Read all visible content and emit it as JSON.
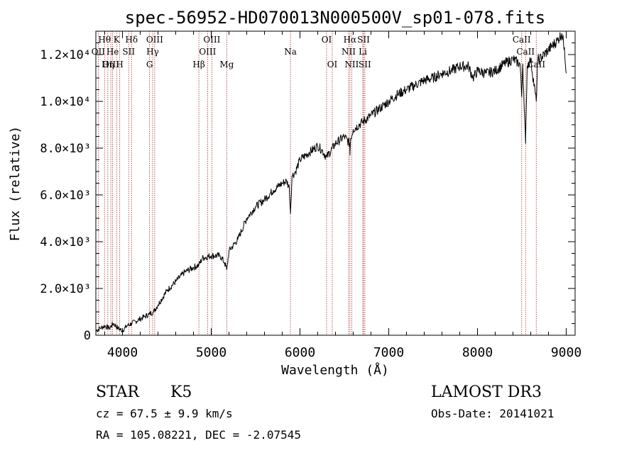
{
  "chart_data": {
    "type": "line",
    "title": "spec-56952-HD070013N000500V_sp01-078.fits",
    "xlabel": "Wavelength (Å)",
    "ylabel": "Flux (relative)",
    "xlim": [
      3700,
      9100
    ],
    "ylim": [
      0,
      13000
    ],
    "x_ticks": [
      {
        "value": 4000,
        "label": "4000"
      },
      {
        "value": 5000,
        "label": "5000"
      },
      {
        "value": 6000,
        "label": "6000"
      },
      {
        "value": 7000,
        "label": "7000"
      },
      {
        "value": 8000,
        "label": "8000"
      },
      {
        "value": 9000,
        "label": "9000"
      }
    ],
    "y_ticks": [
      {
        "value": 0,
        "label": "0"
      },
      {
        "value": 2000,
        "label": "2.0×10³"
      },
      {
        "value": 4000,
        "label": "4.0×10³"
      },
      {
        "value": 6000,
        "label": "6.0×10³"
      },
      {
        "value": 8000,
        "label": "8.0×10³"
      },
      {
        "value": 10000,
        "label": "1.0×10⁴"
      },
      {
        "value": 12000,
        "label": "1.2×10⁴"
      }
    ],
    "spectral_lines": [
      {
        "label": "Hθ",
        "wavelength": 3798,
        "row": 0
      },
      {
        "label": "OII",
        "wavelength": 3727,
        "row": 1
      },
      {
        "label": "OIII",
        "wavelength": 3869,
        "row": 2
      },
      {
        "label": "K",
        "wavelength": 3934,
        "row": 0
      },
      {
        "label": "He",
        "wavelength": 3889,
        "row": 1
      },
      {
        "label": "Hη",
        "wavelength": 3835,
        "row": 2
      },
      {
        "label": "SII",
        "wavelength": 4070,
        "row": 1
      },
      {
        "label": "H",
        "wavelength": 3969,
        "row": 2
      },
      {
        "label": "Hδ",
        "wavelength": 4102,
        "row": 0
      },
      {
        "label": "OIII",
        "wavelength": 4363,
        "row": 0
      },
      {
        "label": "Hγ",
        "wavelength": 4340,
        "row": 1
      },
      {
        "label": "G",
        "wavelength": 4305,
        "row": 2
      },
      {
        "label": "Hβ",
        "wavelength": 4861,
        "row": 2
      },
      {
        "label": "OIII",
        "wavelength": 5007,
        "row": 0
      },
      {
        "label": "OIII",
        "wavelength": 4959,
        "row": 1
      },
      {
        "label": "Mg",
        "wavelength": 5175,
        "row": 2
      },
      {
        "label": "Na",
        "wavelength": 5893,
        "row": 1
      },
      {
        "label": "OI",
        "wavelength": 6300,
        "row": 0
      },
      {
        "label": "OI",
        "wavelength": 6364,
        "row": 2
      },
      {
        "label": "Hα",
        "wavelength": 6563,
        "row": 0
      },
      {
        "label": "NII",
        "wavelength": 6548,
        "row": 1
      },
      {
        "label": "NII",
        "wavelength": 6583,
        "row": 2
      },
      {
        "label": "SII",
        "wavelength": 6716,
        "row": 0
      },
      {
        "label": "Li",
        "wavelength": 6708,
        "row": 1
      },
      {
        "label": "SII",
        "wavelength": 6731,
        "row": 2
      },
      {
        "label": "CaII",
        "wavelength": 8498,
        "row": 0
      },
      {
        "label": "CaII",
        "wavelength": 8542,
        "row": 1
      },
      {
        "label": "CaII",
        "wavelength": 8662,
        "row": 2
      }
    ],
    "series": [
      {
        "name": "spectrum",
        "x": [
          3700,
          3750,
          3800,
          3850,
          3900,
          3950,
          4000,
          4050,
          4100,
          4150,
          4200,
          4250,
          4300,
          4350,
          4400,
          4500,
          4600,
          4700,
          4800,
          4861,
          4900,
          5000,
          5100,
          5150,
          5175,
          5200,
          5300,
          5400,
          5500,
          5600,
          5700,
          5800,
          5850,
          5880,
          5893,
          5910,
          5950,
          6000,
          6100,
          6200,
          6250,
          6300,
          6400,
          6500,
          6560,
          6563,
          6570,
          6600,
          6700,
          6800,
          6900,
          7000,
          7100,
          7200,
          7300,
          7400,
          7500,
          7600,
          7700,
          7800,
          7900,
          7950,
          8000,
          8100,
          8200,
          8300,
          8400,
          8480,
          8498,
          8510,
          8542,
          8560,
          8600,
          8662,
          8680,
          8700,
          8800,
          8900,
          8950,
          8980,
          9000
        ],
        "y": [
          200,
          300,
          400,
          300,
          500,
          300,
          200,
          400,
          500,
          600,
          700,
          800,
          900,
          1000,
          1300,
          1900,
          2300,
          2700,
          2900,
          3000,
          3300,
          3400,
          3400,
          3100,
          2800,
          3600,
          4100,
          5000,
          5500,
          5800,
          6200,
          6500,
          6600,
          6300,
          5200,
          6800,
          7000,
          7500,
          7800,
          8100,
          7900,
          7600,
          8200,
          8500,
          8200,
          7700,
          8400,
          8800,
          9100,
          9400,
          9700,
          10000,
          10300,
          10500,
          10700,
          10900,
          11000,
          11200,
          11300,
          11500,
          11500,
          11000,
          11300,
          11200,
          11300,
          11600,
          11800,
          11600,
          10200,
          11600,
          8200,
          11500,
          11800,
          10000,
          11800,
          11800,
          12200,
          12600,
          12900,
          12300,
          11200
        ]
      }
    ]
  },
  "annotations": {
    "object_class": "STAR",
    "subclass": "K5",
    "survey": "LAMOST DR3",
    "redshift": "cz =  67.5 ± 9.9 km/s",
    "obs_date": "Obs-Date: 20141021",
    "coordinates": "RA = 105.08221, DEC =  -2.07545"
  },
  "colors": {
    "line_marker": "#b03030",
    "spectrum": "#000000",
    "axes": "#000000"
  }
}
